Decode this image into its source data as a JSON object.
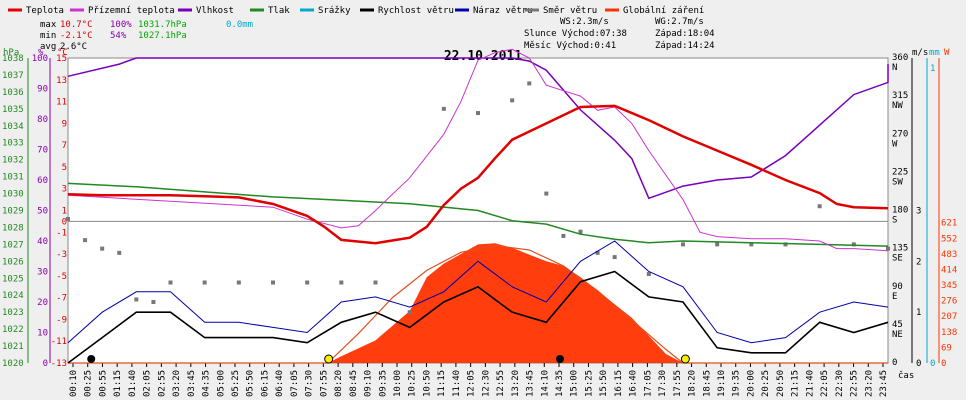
{
  "chart_data": {
    "type": "line",
    "title": "22.10.2011",
    "legend": [
      {
        "name": "Teplota",
        "color": "#e00000"
      },
      {
        "name": "Přízemní teplota",
        "color": "#cc33cc"
      },
      {
        "name": "Vlhkost",
        "color": "#7700bb"
      },
      {
        "name": "Tlak",
        "color": "#228822"
      },
      {
        "name": "Srážky",
        "color": "#00aacc"
      },
      {
        "name": "Rychlost větru",
        "color": "#000000"
      },
      {
        "name": "Náraz větru",
        "color": "#0000aa"
      },
      {
        "name": "Směr větru",
        "color": "#777777"
      },
      {
        "name": "Globální záření",
        "color": "#ff3300"
      }
    ],
    "stats": {
      "max_label": "max",
      "max_temp": "10.7°C",
      "max_hum": "100%",
      "max_press": "1031.7hPa",
      "max_rain": "0.0mm",
      "min_label": "min",
      "min_temp": "-2.1°C",
      "min_hum": "54%",
      "min_press": "1027.1hPa",
      "avg_label": "avg",
      "avg_temp": "2.6°C",
      "ws": "WS:2.3m/s",
      "wg": "WG:2.7m/s",
      "sun": "Slunce Východ:07:38",
      "sunset": "Západ:18:04",
      "moon": "Měsíc  Východ:0:41",
      "moonset": "Západ:14:24"
    },
    "axes": {
      "hpa_unit": "hPa",
      "pct_unit": "%",
      "temp_unit": "°C",
      "ms_unit": "m/s",
      "mm_unit": "mm",
      "w_unit": "W",
      "x_unit": "čas",
      "hpa_ticks": [
        1020,
        1021,
        1022,
        1023,
        1024,
        1025,
        1026,
        1027,
        1028,
        1029,
        1030,
        1031,
        1032,
        1033,
        1034,
        1035,
        1036,
        1037,
        1038
      ],
      "pct_ticks": [
        0,
        10,
        20,
        30,
        40,
        50,
        60,
        70,
        80,
        90,
        100
      ],
      "temp_ticks": [
        -13,
        -11,
        -9,
        -7,
        -5,
        -3,
        -1,
        0,
        1,
        3,
        5,
        7,
        9,
        11,
        13,
        15
      ],
      "dir_ticks": [
        {
          "deg": 0,
          "label": "0"
        },
        {
          "deg": 45,
          "label": "45\nNE"
        },
        {
          "deg": 90,
          "label": "90\nE"
        },
        {
          "deg": 135,
          "label": "135\nSE"
        },
        {
          "deg": 180,
          "label": "180\nS"
        },
        {
          "deg": 225,
          "label": "225\nSW"
        },
        {
          "deg": 270,
          "label": "270\nW"
        },
        {
          "deg": 315,
          "label": "315\nNW"
        },
        {
          "deg": 360,
          "label": "360\nN"
        }
      ],
      "ms_ticks": [
        0,
        1,
        2,
        3
      ],
      "mm_ticks": [
        0,
        1
      ],
      "w_ticks": [
        0,
        69,
        138,
        207,
        276,
        345,
        414,
        483,
        552,
        621
      ],
      "x_ticks": [
        "00:10",
        "00:25",
        "00:55",
        "01:15",
        "01:40",
        "02:05",
        "02:55",
        "03:20",
        "03:45",
        "04:35",
        "05:00",
        "05:25",
        "05:50",
        "06:15",
        "06:40",
        "07:05",
        "07:30",
        "07:55",
        "08:20",
        "08:45",
        "09:10",
        "09:35",
        "10:00",
        "10:25",
        "10:50",
        "11:15",
        "11:40",
        "12:05",
        "12:30",
        "12:55",
        "13:20",
        "13:45",
        "14:10",
        "14:35",
        "15:00",
        "15:25",
        "15:50",
        "16:15",
        "16:40",
        "17:05",
        "17:30",
        "17:55",
        "18:20",
        "18:45",
        "19:10",
        "19:35",
        "20:00",
        "20:25",
        "20:50",
        "21:15",
        "21:40",
        "22:05",
        "22:30",
        "22:55",
        "23:20",
        "23:45"
      ]
    },
    "series": {
      "temperature": [
        [
          0,
          2.5
        ],
        [
          1,
          2.4
        ],
        [
          2,
          2.4
        ],
        [
          3,
          2.4
        ],
        [
          4,
          2.3
        ],
        [
          5,
          2.2
        ],
        [
          6,
          1.6
        ],
        [
          7,
          0.5
        ],
        [
          7.5,
          -0.5
        ],
        [
          8,
          -1.7
        ],
        [
          9,
          -2
        ],
        [
          10,
          -1.5
        ],
        [
          10.5,
          -0.5
        ],
        [
          11,
          1.5
        ],
        [
          11.5,
          3
        ],
        [
          12,
          4
        ],
        [
          12.5,
          5.8
        ],
        [
          13,
          7.5
        ],
        [
          14,
          9
        ],
        [
          15,
          10.5
        ],
        [
          16,
          10.6
        ],
        [
          17,
          9.3
        ],
        [
          18,
          7.8
        ],
        [
          19,
          6.5
        ],
        [
          20,
          5.2
        ],
        [
          21,
          3.8
        ],
        [
          22,
          2.6
        ],
        [
          22.5,
          1.6
        ],
        [
          23,
          1.3
        ],
        [
          24,
          1.2
        ]
      ],
      "ground_temperature": [
        [
          0,
          2.4
        ],
        [
          6,
          1.3
        ],
        [
          7,
          0.2
        ],
        [
          8,
          -0.6
        ],
        [
          8.5,
          -0.4
        ],
        [
          9,
          1
        ],
        [
          10,
          4
        ],
        [
          11,
          8
        ],
        [
          11.5,
          11
        ],
        [
          12,
          14.8
        ],
        [
          12.5,
          15.5
        ],
        [
          13,
          15.8
        ],
        [
          13.5,
          15
        ],
        [
          14,
          12.5
        ],
        [
          14.5,
          12
        ],
        [
          15,
          11.5
        ],
        [
          15.5,
          10.2
        ],
        [
          16,
          10.5
        ],
        [
          16.5,
          9
        ],
        [
          17,
          6.5
        ],
        [
          18,
          2
        ],
        [
          18.5,
          -1
        ],
        [
          19,
          -1.4
        ],
        [
          20,
          -1.6
        ],
        [
          21,
          -1.6
        ],
        [
          22,
          -1.8
        ],
        [
          22.5,
          -2.5
        ],
        [
          23,
          -2.5
        ],
        [
          24,
          -2.7
        ]
      ],
      "humidity": [
        [
          0,
          94
        ],
        [
          1.5,
          98
        ],
        [
          2,
          100
        ],
        [
          13,
          100
        ],
        [
          13.5,
          99
        ],
        [
          14,
          96
        ],
        [
          15,
          83
        ],
        [
          16,
          73
        ],
        [
          16.5,
          67
        ],
        [
          17,
          54
        ],
        [
          18,
          58
        ],
        [
          19,
          60
        ],
        [
          20,
          61
        ],
        [
          21,
          68
        ],
        [
          22,
          78
        ],
        [
          23,
          88
        ],
        [
          24,
          92
        ],
        [
          24,
          93
        ],
        [
          24,
          95
        ],
        [
          24,
          97
        ],
        [
          24,
          98
        ],
        [
          24,
          98
        ],
        [
          24,
          97
        ],
        [
          24,
          96
        ],
        [
          24,
          93
        ]
      ],
      "pressure": [
        [
          0,
          1030.6
        ],
        [
          2,
          1030.4
        ],
        [
          4,
          1030.1
        ],
        [
          6,
          1029.8
        ],
        [
          8,
          1029.6
        ],
        [
          10,
          1029.4
        ],
        [
          12,
          1029
        ],
        [
          13,
          1028.4
        ],
        [
          14,
          1028.2
        ],
        [
          15,
          1027.6
        ],
        [
          16,
          1027.3
        ],
        [
          17,
          1027.1
        ],
        [
          18,
          1027.2
        ],
        [
          20,
          1027.1
        ],
        [
          22,
          1027
        ],
        [
          24,
          1026.9
        ]
      ],
      "wind_speed": [
        [
          0,
          0
        ],
        [
          1,
          0.5
        ],
        [
          2,
          1
        ],
        [
          3,
          1
        ],
        [
          4,
          0.5
        ],
        [
          5,
          0.5
        ],
        [
          6,
          0.5
        ],
        [
          7,
          0.4
        ],
        [
          8,
          0.8
        ],
        [
          9,
          1
        ],
        [
          10,
          0.7
        ],
        [
          11,
          1.2
        ],
        [
          12,
          1.5
        ],
        [
          13,
          1
        ],
        [
          14,
          0.8
        ],
        [
          15,
          1.6
        ],
        [
          16,
          1.8
        ],
        [
          17,
          1.3
        ],
        [
          18,
          1.2
        ],
        [
          19,
          0.3
        ],
        [
          20,
          0.2
        ],
        [
          21,
          0.2
        ],
        [
          22,
          0.8
        ],
        [
          23,
          0.6
        ],
        [
          24,
          0.8
        ]
      ],
      "wind_gust": [
        [
          0,
          0.4
        ],
        [
          1,
          1
        ],
        [
          2,
          1.4
        ],
        [
          3,
          1.4
        ],
        [
          4,
          0.8
        ],
        [
          5,
          0.8
        ],
        [
          6,
          0.7
        ],
        [
          7,
          0.6
        ],
        [
          8,
          1.2
        ],
        [
          9,
          1.3
        ],
        [
          10,
          1.1
        ],
        [
          11,
          1.4
        ],
        [
          12,
          2
        ],
        [
          13,
          1.5
        ],
        [
          14,
          1.2
        ],
        [
          15,
          2
        ],
        [
          16,
          2.4
        ],
        [
          17,
          1.8
        ],
        [
          18,
          1.5
        ],
        [
          19,
          0.6
        ],
        [
          20,
          0.4
        ],
        [
          21,
          0.5
        ],
        [
          22,
          1
        ],
        [
          23,
          1.2
        ],
        [
          24,
          1.1
        ]
      ],
      "wind_direction": [
        [
          0,
          170
        ],
        [
          0.5,
          145
        ],
        [
          1,
          135
        ],
        [
          1.5,
          130
        ],
        [
          2,
          75
        ],
        [
          2.5,
          72
        ],
        [
          3,
          95
        ],
        [
          4,
          95
        ],
        [
          5,
          95
        ],
        [
          6,
          95
        ],
        [
          7,
          95
        ],
        [
          8,
          95
        ],
        [
          9,
          95
        ],
        [
          10,
          60
        ],
        [
          11,
          300
        ],
        [
          12,
          295
        ],
        [
          13,
          310
        ],
        [
          13.5,
          330
        ],
        [
          14,
          200
        ],
        [
          14.5,
          150
        ],
        [
          15,
          155
        ],
        [
          15.5,
          130
        ],
        [
          16,
          125
        ],
        [
          17,
          105
        ],
        [
          18,
          140
        ],
        [
          19,
          140
        ],
        [
          20,
          140
        ],
        [
          21,
          140
        ],
        [
          22,
          185
        ],
        [
          23,
          140
        ],
        [
          24,
          135
        ]
      ],
      "radiation": [
        [
          0,
          0
        ],
        [
          7.6,
          0
        ],
        [
          8,
          30
        ],
        [
          9,
          100
        ],
        [
          10,
          230
        ],
        [
          10.5,
          380
        ],
        [
          11,
          440
        ],
        [
          12,
          525
        ],
        [
          12.5,
          530
        ],
        [
          13,
          510
        ],
        [
          13.5,
          480
        ],
        [
          14,
          450
        ],
        [
          14.5,
          430
        ],
        [
          15,
          380
        ],
        [
          16,
          260
        ],
        [
          16.5,
          200
        ],
        [
          17,
          120
        ],
        [
          17.5,
          40
        ],
        [
          18,
          0
        ],
        [
          24,
          0
        ]
      ],
      "radiation_max": [
        [
          0,
          0
        ],
        [
          7.6,
          0
        ],
        [
          8.5,
          130
        ],
        [
          9.5,
          290
        ],
        [
          10.5,
          410
        ],
        [
          11.5,
          490
        ],
        [
          12.5,
          520
        ],
        [
          13.5,
          500
        ],
        [
          14.5,
          430
        ],
        [
          15.5,
          320
        ],
        [
          16.5,
          190
        ],
        [
          17.5,
          60
        ],
        [
          18,
          0
        ],
        [
          24,
          0
        ]
      ]
    },
    "markers": {
      "sunrise": 7.63,
      "sunset": 18.07,
      "moonrise": 0.68,
      "moonset": 14.4
    }
  }
}
